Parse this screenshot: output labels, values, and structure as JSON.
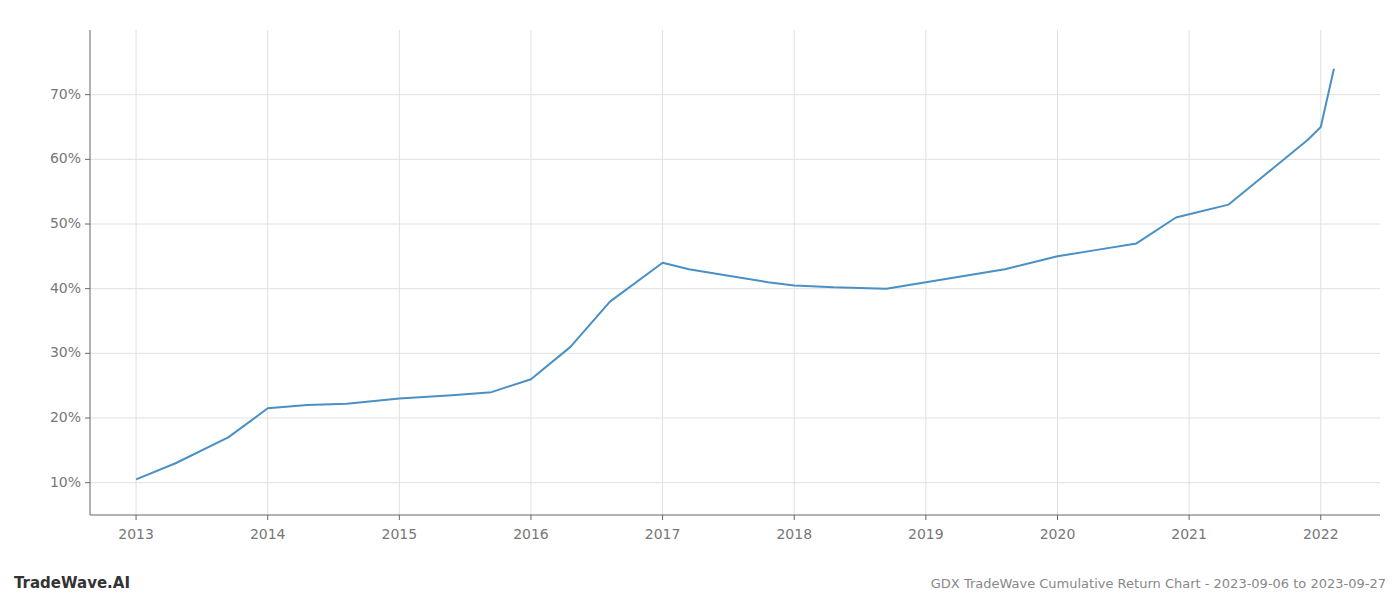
{
  "chart_data": {
    "type": "line",
    "title": "GDX TradeWave Cumulative Return Chart - 2023-09-06 to 2023-09-27",
    "annotations": [
      "TradeWave.AI"
    ],
    "x": [
      2013.0,
      2013.3,
      2013.7,
      2014.0,
      2014.3,
      2014.6,
      2015.0,
      2015.4,
      2015.7,
      2016.0,
      2016.3,
      2016.6,
      2017.0,
      2017.2,
      2017.5,
      2017.8,
      2018.0,
      2018.3,
      2018.7,
      2019.0,
      2019.3,
      2019.6,
      2019.9,
      2020.0,
      2020.3,
      2020.6,
      2020.9,
      2021.0,
      2021.3,
      2021.6,
      2021.9,
      2022.0,
      2022.1
    ],
    "values": [
      10.5,
      13,
      17,
      21.5,
      22,
      22.2,
      23,
      23.5,
      24,
      26,
      31,
      38,
      44,
      43,
      42,
      41,
      40.5,
      40.2,
      40,
      41,
      42,
      43,
      44.5,
      45,
      46,
      47,
      51,
      51.5,
      53,
      58,
      63,
      65,
      74
    ],
    "color": "#4a90c4",
    "xlim": [
      2012.65,
      2022.45
    ],
    "ylim": [
      5,
      80
    ],
    "xticks": [
      2013,
      2014,
      2015,
      2016,
      2017,
      2018,
      2019,
      2020,
      2021,
      2022
    ],
    "yticks": [
      {
        "value": 10,
        "label": "10%"
      },
      {
        "value": 20,
        "label": "20%"
      },
      {
        "value": 30,
        "label": "30%"
      },
      {
        "value": 40,
        "label": "40%"
      },
      {
        "value": 50,
        "label": "50%"
      },
      {
        "value": 60,
        "label": "60%"
      },
      {
        "value": 70,
        "label": "70%"
      }
    ],
    "grid": true
  }
}
